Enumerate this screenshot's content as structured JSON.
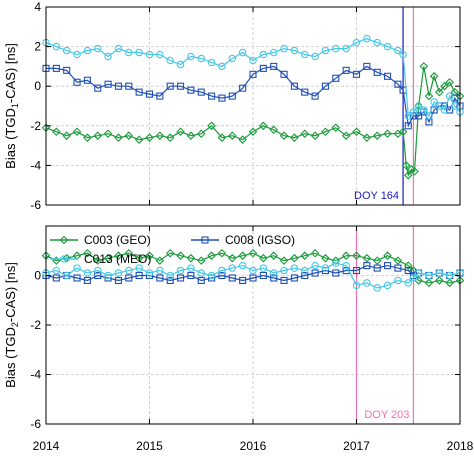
{
  "chart_data": [
    {
      "type": "line",
      "panel": "top",
      "ylabel": {
        "prefix": "Bias (TGD",
        "sub": "1",
        "suffix": "-CAS) [ns]"
      },
      "xlim": [
        2014,
        2018
      ],
      "ylim": [
        -6,
        4
      ],
      "xticks": [
        2014,
        2015,
        2016,
        2017,
        2018
      ],
      "xtick_labels": [
        "2014",
        "2015",
        "2016",
        "2017",
        "2018"
      ],
      "yticks": [
        -6,
        -4,
        -2,
        0,
        2,
        4
      ],
      "ytick_labels": [
        "-6",
        "-4",
        "-2",
        "0",
        "2",
        "4"
      ],
      "grid": true,
      "colors": {
        "geo": "#1a9a3a",
        "igso": "#1f4fb8",
        "meo": "#44c8e8"
      },
      "vline": {
        "x": 2017.45,
        "label": "DOY 164",
        "color": "#1a1ac8"
      },
      "vline2": {
        "x": 2017.55,
        "color": "#f070b0"
      },
      "series": [
        {
          "key": "geo",
          "name": "C003 (GEO)",
          "marker": "diamond",
          "x": [
            2014.0,
            2014.1,
            2014.2,
            2014.3,
            2014.4,
            2014.5,
            2014.6,
            2014.7,
            2014.8,
            2014.9,
            2015.0,
            2015.1,
            2015.2,
            2015.3,
            2015.4,
            2015.5,
            2015.6,
            2015.7,
            2015.8,
            2015.9,
            2016.0,
            2016.1,
            2016.2,
            2016.3,
            2016.4,
            2016.5,
            2016.6,
            2016.7,
            2016.8,
            2016.9,
            2017.0,
            2017.1,
            2017.2,
            2017.3,
            2017.4,
            2017.45,
            2017.48,
            2017.5,
            2017.53,
            2017.56,
            2017.6,
            2017.65,
            2017.7,
            2017.75,
            2017.8,
            2017.85,
            2017.9,
            2017.95,
            2018.0
          ],
          "y": [
            -2.1,
            -2.3,
            -2.5,
            -2.3,
            -2.6,
            -2.5,
            -2.4,
            -2.6,
            -2.5,
            -2.7,
            -2.6,
            -2.5,
            -2.6,
            -2.3,
            -2.5,
            -2.4,
            -2.0,
            -2.6,
            -2.5,
            -2.7,
            -2.3,
            -2.0,
            -2.2,
            -2.5,
            -2.6,
            -2.4,
            -2.5,
            -2.3,
            -2.1,
            -2.5,
            -2.3,
            -2.6,
            -2.5,
            -2.4,
            -2.4,
            -2.3,
            -4.0,
            -4.5,
            -4.2,
            -4.3,
            -1.0,
            1.0,
            -0.5,
            0.5,
            -0.3,
            0.0,
            0.2,
            -0.3,
            -0.5
          ]
        },
        {
          "key": "igso",
          "name": "C008 (IGSO)",
          "marker": "square",
          "x": [
            2014.0,
            2014.1,
            2014.2,
            2014.3,
            2014.4,
            2014.5,
            2014.6,
            2014.7,
            2014.8,
            2014.9,
            2015.0,
            2015.1,
            2015.2,
            2015.3,
            2015.4,
            2015.5,
            2015.6,
            2015.7,
            2015.8,
            2015.9,
            2016.0,
            2016.1,
            2016.2,
            2016.3,
            2016.4,
            2016.5,
            2016.6,
            2016.7,
            2016.8,
            2016.9,
            2017.0,
            2017.1,
            2017.2,
            2017.3,
            2017.4,
            2017.45,
            2017.5,
            2017.55,
            2017.6,
            2017.65,
            2017.7,
            2017.75,
            2017.8,
            2017.85,
            2017.9,
            2017.95,
            2018.0
          ],
          "y": [
            0.9,
            0.9,
            0.8,
            0.2,
            0.3,
            -0.1,
            0.1,
            0.0,
            0.0,
            -0.3,
            -0.4,
            -0.5,
            0.0,
            0.0,
            -0.2,
            -0.3,
            -0.5,
            -0.6,
            -0.5,
            -0.1,
            0.6,
            0.9,
            1.0,
            0.6,
            0.0,
            -0.3,
            -0.5,
            0.0,
            0.4,
            0.8,
            0.6,
            1.0,
            0.7,
            0.5,
            0.1,
            -0.2,
            -2.0,
            -1.5,
            -1.5,
            -1.3,
            -1.8,
            -1.2,
            -1.0,
            -1.0,
            -1.2,
            -0.6,
            -1.0
          ]
        },
        {
          "key": "meo",
          "name": "C013 (MEO)",
          "marker": "circle",
          "x": [
            2014.0,
            2014.1,
            2014.2,
            2014.3,
            2014.4,
            2014.5,
            2014.6,
            2014.7,
            2014.8,
            2014.9,
            2015.0,
            2015.1,
            2015.2,
            2015.3,
            2015.4,
            2015.5,
            2015.6,
            2015.7,
            2015.8,
            2015.9,
            2016.0,
            2016.1,
            2016.2,
            2016.3,
            2016.4,
            2016.5,
            2016.6,
            2016.7,
            2016.8,
            2016.9,
            2017.0,
            2017.1,
            2017.2,
            2017.3,
            2017.4,
            2017.45,
            2017.5,
            2017.55,
            2017.6,
            2017.65,
            2017.7,
            2017.75,
            2017.8,
            2017.85,
            2017.9,
            2017.95,
            2018.0
          ],
          "y": [
            2.2,
            2.0,
            1.8,
            1.6,
            1.8,
            1.9,
            1.5,
            1.9,
            1.7,
            1.7,
            1.6,
            1.6,
            1.3,
            1.1,
            1.5,
            1.4,
            1.2,
            1.0,
            1.4,
            1.7,
            1.3,
            1.6,
            1.7,
            1.9,
            1.8,
            1.6,
            1.5,
            1.8,
            1.9,
            1.9,
            2.2,
            2.4,
            2.2,
            2.0,
            1.8,
            1.6,
            -1.5,
            -1.3,
            -1.0,
            -1.2,
            -1.5,
            -0.8,
            -1.0,
            -1.2,
            -0.5,
            -1.0,
            -1.3
          ]
        }
      ]
    },
    {
      "type": "line",
      "panel": "bottom",
      "ylabel": {
        "prefix": "Bias (TGD",
        "sub": "2",
        "suffix": "-CAS) [ns]"
      },
      "xlim": [
        2014,
        2018
      ],
      "ylim": [
        -6,
        2
      ],
      "xticks": [
        2014,
        2015,
        2016,
        2017,
        2018
      ],
      "xtick_labels": [
        "2014",
        "2015",
        "2016",
        "2017",
        "2018"
      ],
      "yticks": [
        -6,
        -4,
        -2,
        0
      ],
      "ytick_labels": [
        "-6",
        "-4",
        "-2",
        "0"
      ],
      "grid": true,
      "colors": {
        "geo": "#1a9a3a",
        "igso": "#1f4fb8",
        "meo": "#44c8e8"
      },
      "vline": {
        "x": 2017.0,
        "color": "#f070b0"
      },
      "vline2": {
        "x": 2017.55,
        "label": "DOY 203",
        "color": "#f070b0"
      },
      "legend": {
        "placement": "top-left"
      },
      "series": [
        {
          "key": "geo",
          "name": "C003 (GEO)",
          "marker": "diamond",
          "x": [
            2014.0,
            2014.1,
            2014.2,
            2014.3,
            2014.4,
            2014.5,
            2014.6,
            2014.7,
            2014.8,
            2014.9,
            2015.0,
            2015.1,
            2015.2,
            2015.3,
            2015.4,
            2015.5,
            2015.6,
            2015.7,
            2015.8,
            2015.9,
            2016.0,
            2016.1,
            2016.2,
            2016.3,
            2016.4,
            2016.5,
            2016.6,
            2016.7,
            2016.8,
            2016.9,
            2017.0,
            2017.1,
            2017.2,
            2017.3,
            2017.4,
            2017.5,
            2017.55,
            2017.6,
            2017.7,
            2017.8,
            2017.9,
            2018.0
          ],
          "y": [
            0.8,
            0.6,
            0.7,
            0.8,
            0.9,
            0.6,
            0.7,
            0.8,
            0.9,
            0.7,
            0.8,
            0.6,
            0.9,
            0.8,
            0.7,
            0.6,
            0.8,
            0.9,
            0.7,
            0.8,
            0.9,
            0.7,
            0.8,
            0.6,
            0.7,
            0.8,
            0.9,
            0.7,
            0.6,
            0.8,
            0.8,
            0.7,
            0.6,
            0.8,
            0.6,
            0.4,
            0.2,
            -0.2,
            -0.3,
            -0.2,
            -0.3,
            -0.2
          ]
        },
        {
          "key": "igso",
          "name": "C008 (IGSO)",
          "marker": "square",
          "x": [
            2014.0,
            2014.1,
            2014.2,
            2014.3,
            2014.4,
            2014.5,
            2014.6,
            2014.7,
            2014.8,
            2014.9,
            2015.0,
            2015.1,
            2015.2,
            2015.3,
            2015.4,
            2015.5,
            2015.6,
            2015.7,
            2015.8,
            2015.9,
            2016.0,
            2016.1,
            2016.2,
            2016.3,
            2016.4,
            2016.5,
            2016.6,
            2016.7,
            2016.8,
            2016.9,
            2017.0,
            2017.1,
            2017.2,
            2017.3,
            2017.4,
            2017.5,
            2017.55,
            2017.6,
            2017.7,
            2017.8,
            2017.9,
            2018.0
          ],
          "y": [
            0.0,
            -0.1,
            0.0,
            -0.1,
            -0.2,
            0.0,
            -0.1,
            -0.2,
            -0.1,
            0.0,
            0.0,
            -0.1,
            -0.2,
            -0.1,
            0.0,
            -0.2,
            -0.1,
            0.0,
            -0.1,
            -0.2,
            -0.1,
            0.0,
            -0.1,
            -0.2,
            -0.1,
            0.0,
            0.1,
            0.2,
            0.1,
            0.2,
            0.2,
            0.4,
            0.3,
            0.4,
            0.3,
            0.2,
            0.0,
            0.1,
            0.0,
            0.1,
            0.0,
            0.1
          ]
        },
        {
          "key": "meo",
          "name": "C013 (MEO)",
          "marker": "circle",
          "x": [
            2014.0,
            2014.1,
            2014.2,
            2014.3,
            2014.4,
            2014.5,
            2014.6,
            2014.7,
            2014.8,
            2014.9,
            2015.0,
            2015.1,
            2015.2,
            2015.3,
            2015.4,
            2015.5,
            2015.6,
            2015.7,
            2015.8,
            2015.9,
            2016.0,
            2016.1,
            2016.2,
            2016.3,
            2016.4,
            2016.5,
            2016.6,
            2016.7,
            2016.8,
            2016.9,
            2017.0,
            2017.1,
            2017.2,
            2017.3,
            2017.4,
            2017.5,
            2017.55,
            2017.6,
            2017.7,
            2017.8,
            2017.9,
            2018.0
          ],
          "y": [
            0.1,
            0.2,
            0.0,
            0.3,
            0.1,
            0.2,
            0.0,
            0.1,
            0.2,
            0.3,
            0.1,
            0.2,
            0.0,
            0.2,
            0.3,
            0.1,
            0.0,
            0.2,
            0.3,
            0.4,
            0.2,
            0.3,
            0.1,
            0.2,
            0.3,
            0.2,
            0.4,
            0.3,
            0.5,
            0.4,
            -0.4,
            -0.3,
            -0.5,
            -0.4,
            -0.2,
            -0.3,
            -0.1,
            0.1,
            0.0,
            0.1,
            0.0,
            0.1
          ]
        }
      ]
    }
  ]
}
